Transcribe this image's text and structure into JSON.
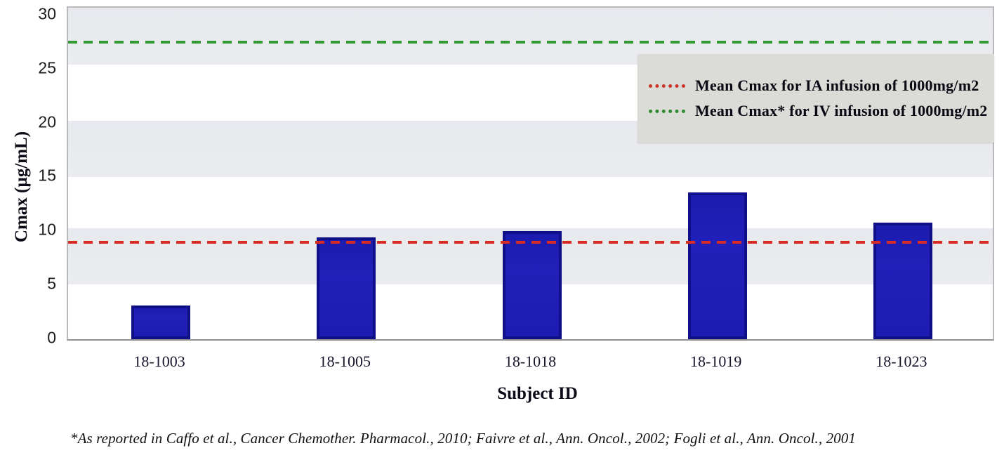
{
  "chart_data": {
    "type": "bar",
    "title": "",
    "categories": [
      "18-1003",
      "18-1005",
      "18-1018",
      "18-1019",
      "18-1023"
    ],
    "values": [
      3.1,
      9.4,
      10.0,
      13.6,
      10.8
    ],
    "xlabel": "Subject ID",
    "ylabel": "Cmax (µg/mL)",
    "ylim": [
      0,
      30.7
    ],
    "yticks": [
      0,
      5,
      10,
      15,
      20,
      25,
      30
    ],
    "grid": "horizontal-bands",
    "grid_band_value_ranges": [
      [
        5.05,
        10.25
      ],
      [
        15.05,
        20.25
      ],
      [
        25.45,
        30.7
      ]
    ],
    "legend_position": "top-right",
    "reference_lines": [
      {
        "name": "mean-cmax-ia",
        "value": 9.0,
        "color": "#d92b21",
        "style": "dashed",
        "label": "Mean Cmax for IA infusion of 1000mg/m2"
      },
      {
        "name": "mean-cmax-iv",
        "value": 27.5,
        "color": "#319a31",
        "style": "dashed",
        "label": "Mean Cmax* for IV infusion of 1000mg/m2"
      }
    ],
    "bar_color": "#1c1cb2",
    "bar_border_color": "#0f0f88",
    "band_color": "#e9eaee",
    "legend_bg_color": "#dbdbd7",
    "footnote": "*As reported in Caffo et al., Cancer Chemother. Pharmacol., 2010; Faivre et al., Ann. Oncol., 2002; Fogli et al., Ann. Oncol., 2001"
  }
}
